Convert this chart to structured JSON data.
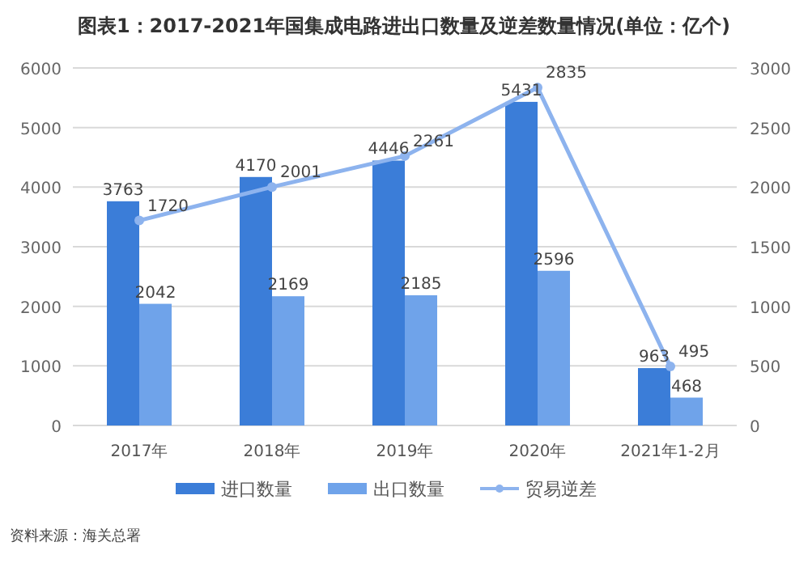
{
  "chart_data": {
    "type": "bar",
    "title": "图表1：2017-2021年国集成电路进出口数量及逆差数量情况(单位：亿个)",
    "categories": [
      "2017年",
      "2018年",
      "2019年",
      "2020年",
      "2021年1-2月"
    ],
    "series": [
      {
        "name": "进口数量",
        "color": "#3b7dd8",
        "values": [
          3763,
          4170,
          4446,
          5431,
          963
        ]
      },
      {
        "name": "出口数量",
        "color": "#6fa3ea",
        "values": [
          2042,
          2169,
          2185,
          2596,
          468
        ]
      },
      {
        "name": "贸易逆差",
        "color": "#8db3ee",
        "type": "line",
        "axis": "y2",
        "marker": "circle",
        "values": [
          1720,
          2001,
          2261,
          2835,
          495
        ]
      }
    ],
    "ylim": [
      0,
      6000
    ],
    "yticks": [
      0,
      1000,
      2000,
      3000,
      4000,
      5000,
      6000
    ],
    "y2lim": [
      0,
      3000
    ],
    "y2ticks": [
      0,
      500,
      1000,
      1500,
      2000,
      2500,
      3000
    ],
    "grid": "y",
    "legend": "bottom",
    "data_labels": true,
    "annotations": [
      "资料来源：海关总署"
    ]
  }
}
